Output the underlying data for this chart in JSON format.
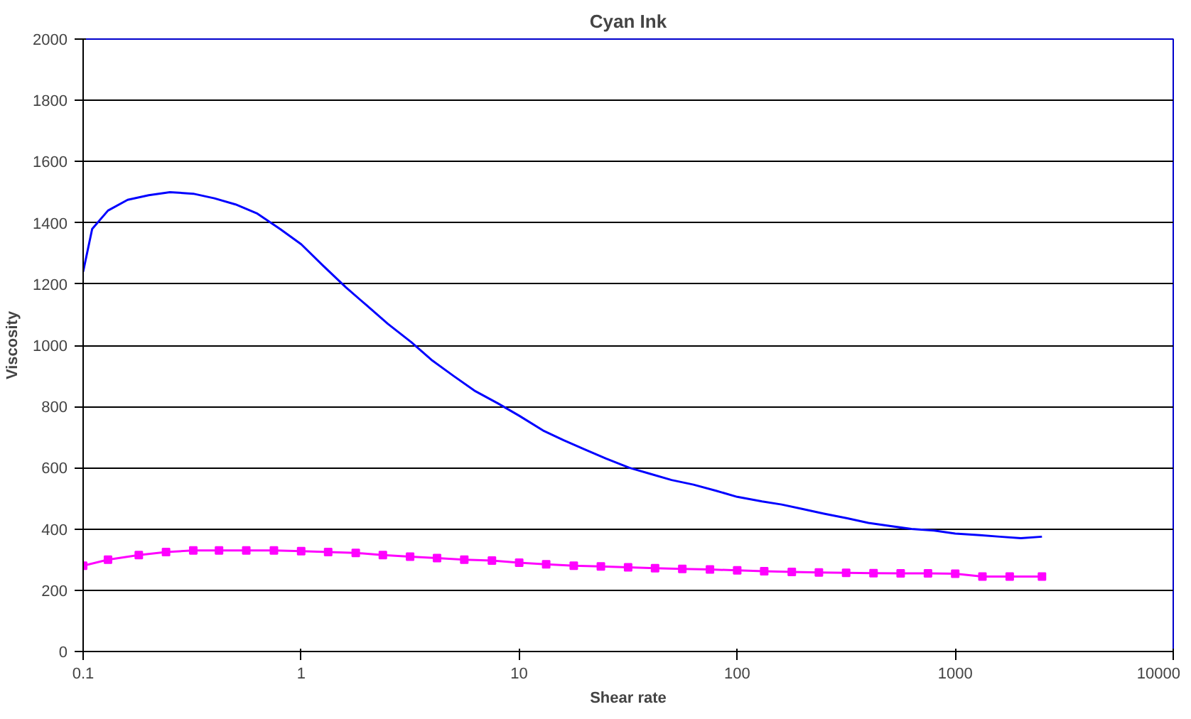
{
  "chart_data": {
    "type": "line",
    "title": "Cyan Ink",
    "xlabel": "Shear rate",
    "ylabel": "Viscosity",
    "log": "x",
    "grid": "y",
    "xlim": [
      0.1,
      10000
    ],
    "xticks": [
      0.1,
      1,
      10,
      100,
      1000,
      10000
    ],
    "ylim": [
      0,
      2000
    ],
    "yticks": [
      0,
      200,
      400,
      600,
      800,
      1000,
      1200,
      1400,
      1600,
      1800,
      2000
    ],
    "series": [
      {
        "color": "#ff00ff",
        "marker": "square",
        "x": [
          0.1,
          0.13,
          0.18,
          0.24,
          0.32,
          0.42,
          0.56,
          0.75,
          1,
          1.33,
          1.78,
          2.37,
          3.16,
          4.2,
          5.6,
          7.5,
          10,
          13.3,
          17.8,
          23.7,
          31.6,
          42,
          56,
          75,
          100,
          133,
          178,
          237,
          316,
          422,
          562,
          750,
          1000,
          1333,
          1778,
          2500
        ],
        "values": [
          280,
          300,
          315,
          325,
          330,
          330,
          330,
          330,
          328,
          325,
          322,
          315,
          310,
          305,
          300,
          297,
          290,
          285,
          280,
          278,
          275,
          272,
          270,
          268,
          265,
          262,
          260,
          258,
          257,
          256,
          255,
          255,
          254,
          245,
          245,
          245
        ]
      },
      {
        "color": "#0000ff",
        "marker": "none",
        "x": [
          0.1,
          0.11,
          0.13,
          0.16,
          0.2,
          0.25,
          0.32,
          0.4,
          0.5,
          0.63,
          0.8,
          1,
          1.26,
          1.6,
          2,
          2.5,
          3.2,
          4,
          5,
          6.3,
          8,
          10,
          13,
          16,
          20,
          25,
          32,
          40,
          50,
          63,
          80,
          100,
          130,
          160,
          200,
          250,
          320,
          400,
          500,
          630,
          800,
          1000,
          1300,
          1600,
          2000,
          2500
        ],
        "values": [
          1240,
          1380,
          1440,
          1475,
          1490,
          1500,
          1495,
          1480,
          1460,
          1430,
          1380,
          1330,
          1260,
          1190,
          1130,
          1070,
          1010,
          950,
          900,
          850,
          810,
          770,
          720,
          690,
          660,
          630,
          600,
          580,
          560,
          545,
          525,
          505,
          490,
          480,
          465,
          450,
          435,
          420,
          410,
          400,
          395,
          385,
          380,
          375,
          370,
          375
        ]
      }
    ]
  }
}
